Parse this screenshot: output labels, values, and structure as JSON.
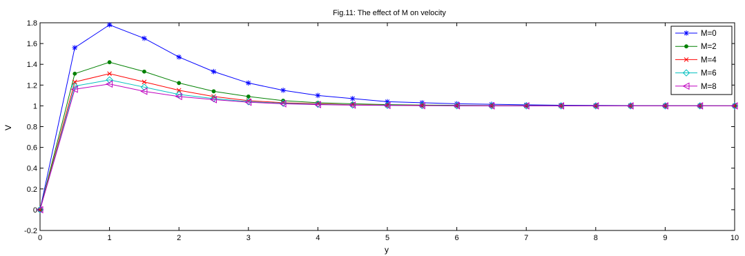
{
  "chart_data": {
    "type": "line",
    "title": "Fig.11: The  effect of  M on velocity",
    "xlabel": "y",
    "ylabel": "V",
    "xlim": [
      0,
      10
    ],
    "ylim": [
      -0.2,
      1.8
    ],
    "xticks": [
      "0",
      "1",
      "2",
      "3",
      "4",
      "5",
      "6",
      "7",
      "8",
      "9",
      "10"
    ],
    "yticks": [
      "-0.2",
      "0",
      "0.2",
      "0.4",
      "0.6",
      "0.8",
      "1",
      "1.2",
      "1.4",
      "1.6",
      "1.8"
    ],
    "grid": false,
    "legend_position": "top-right",
    "x": [
      0,
      0.5,
      1,
      1.5,
      2,
      2.5,
      3,
      3.5,
      4,
      4.5,
      5,
      5.5,
      6,
      6.5,
      7,
      7.5,
      8,
      8.5,
      9,
      9.5,
      10
    ],
    "series": [
      {
        "name": "M=0",
        "color": "#0000ff",
        "marker": "star",
        "values": [
          0,
          1.56,
          1.78,
          1.65,
          1.47,
          1.33,
          1.22,
          1.15,
          1.1,
          1.07,
          1.04,
          1.03,
          1.02,
          1.015,
          1.01,
          1.006,
          1.004,
          1.003,
          1.002,
          1.001,
          1.0
        ]
      },
      {
        "name": "M=2",
        "color": "#008000",
        "marker": "dot",
        "values": [
          0,
          1.31,
          1.42,
          1.33,
          1.22,
          1.14,
          1.09,
          1.05,
          1.03,
          1.02,
          1.012,
          1.008,
          1.005,
          1.003,
          1.002,
          1.001,
          1.0,
          1.0,
          1.0,
          1.0,
          1.0
        ]
      },
      {
        "name": "M=4",
        "color": "#ff0000",
        "marker": "x",
        "values": [
          0,
          1.23,
          1.31,
          1.23,
          1.15,
          1.09,
          1.05,
          1.03,
          1.02,
          1.01,
          1.006,
          1.004,
          1.002,
          1.001,
          1.0,
          1.0,
          1.0,
          1.0,
          1.0,
          1.0,
          1.0
        ]
      },
      {
        "name": "M=6",
        "color": "#00bfbf",
        "marker": "diamond",
        "values": [
          0,
          1.19,
          1.25,
          1.18,
          1.11,
          1.07,
          1.04,
          1.025,
          1.015,
          1.008,
          1.005,
          1.003,
          1.001,
          1.0,
          1.0,
          1.0,
          1.0,
          1.0,
          1.0,
          1.0,
          1.0
        ]
      },
      {
        "name": "M=8",
        "color": "#bf00bf",
        "marker": "triangle-left",
        "values": [
          0,
          1.16,
          1.21,
          1.14,
          1.09,
          1.06,
          1.035,
          1.02,
          1.012,
          1.007,
          1.004,
          1.002,
          1.001,
          1.0,
          1.0,
          1.0,
          1.0,
          1.0,
          1.0,
          1.0,
          1.0
        ]
      }
    ]
  }
}
